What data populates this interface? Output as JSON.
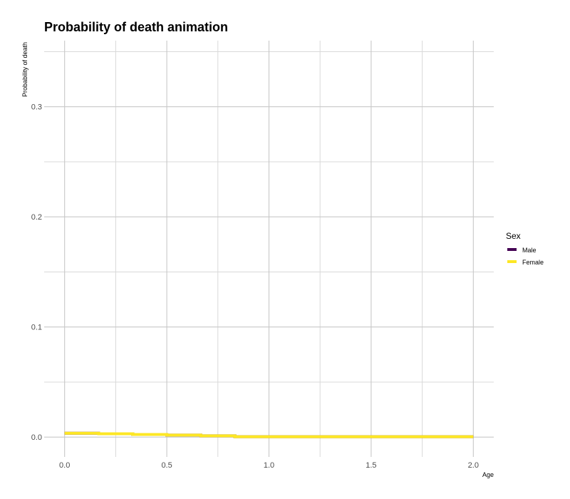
{
  "chart_data": {
    "type": "line",
    "title": "Probability of death animation",
    "xlabel": "Age",
    "ylabel": "Probability of death",
    "xlim": [
      -0.1,
      2.1
    ],
    "ylim": [
      -0.018,
      0.36
    ],
    "x_ticks": [
      0.0,
      0.5,
      1.0,
      1.5,
      2.0
    ],
    "x_tick_labels": [
      "0.0",
      "0.5",
      "1.0",
      "1.5",
      "2.0"
    ],
    "y_ticks": [
      0.0,
      0.1,
      0.2,
      0.3
    ],
    "y_tick_labels": [
      "0.0",
      "0.1",
      "0.2",
      "0.3"
    ],
    "grid": true,
    "line_style": "step",
    "legend": {
      "title": "Sex",
      "position": "right",
      "entries": [
        {
          "label": "Male",
          "color": "#440154"
        },
        {
          "label": "Female",
          "color": "#fde725"
        }
      ]
    },
    "series": [
      {
        "name": "Male",
        "color": "#440154",
        "x": [
          0.0,
          0.1667,
          0.3333,
          0.5,
          0.6667,
          0.8333,
          1.0,
          1.5,
          2.0
        ],
        "y": [
          0.0035,
          0.003,
          0.0024,
          0.0018,
          0.0012,
          0.0004,
          0.0004,
          0.0004,
          0.0004
        ]
      },
      {
        "name": "Female",
        "color": "#fde725",
        "x": [
          0.0,
          0.1667,
          0.3333,
          0.5,
          0.6667,
          0.8333,
          1.0,
          1.5,
          2.0
        ],
        "y": [
          0.0035,
          0.003,
          0.0024,
          0.0018,
          0.0012,
          0.0004,
          0.0004,
          0.0004,
          0.0004
        ]
      }
    ]
  }
}
